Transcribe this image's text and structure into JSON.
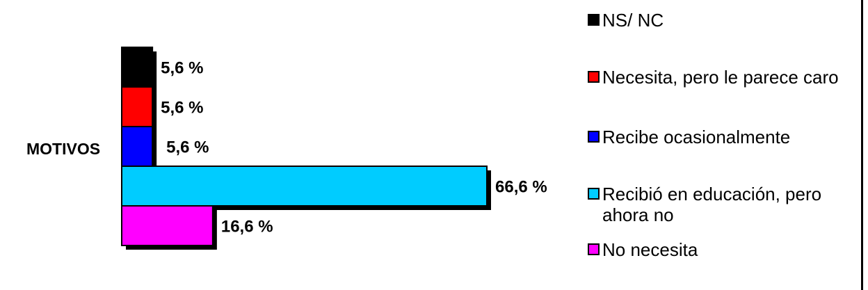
{
  "chart_data": {
    "type": "bar",
    "orientation": "horizontal",
    "stacked_category": "MOTIVOS",
    "categories": [
      "MOTIVOS"
    ],
    "series": [
      {
        "name": "NS/ NC",
        "value": 5.6,
        "label": "5,6 %",
        "color": "#000000"
      },
      {
        "name": "Necesita, pero le parece caro",
        "value": 5.6,
        "label": "5,6 %",
        "color": "#ff0000"
      },
      {
        "name": "Recibe ocasionalmente",
        "value": 5.6,
        "label": "5,6 %",
        "color": "#0000ff"
      },
      {
        "name": "Recibió en educación, pero ahora no",
        "value": 66.6,
        "label": "66,6 %",
        "color": "#00ccff"
      },
      {
        "name": "No necesita",
        "value": 16.6,
        "label": "16,6 %",
        "color": "#ff00ff"
      }
    ],
    "xlim": [
      0,
      66.6
    ],
    "grid": false,
    "legend_position": "right",
    "shadow_color": "#000000"
  }
}
